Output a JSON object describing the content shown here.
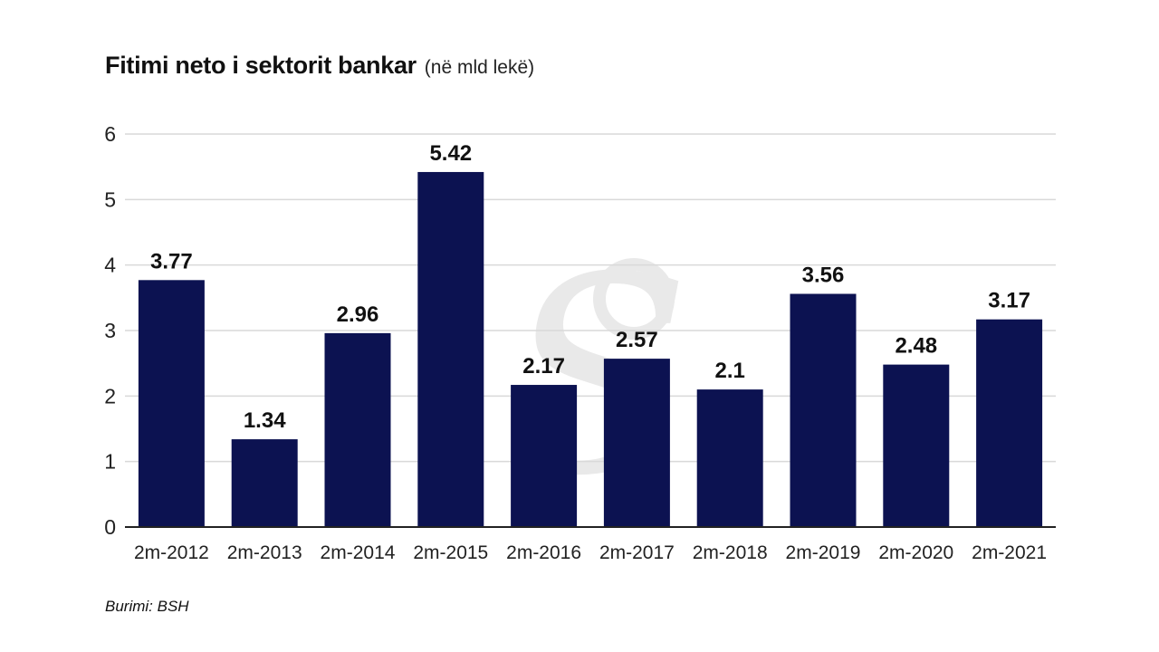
{
  "title": "Fitimi neto i sektorit bankar",
  "subtitle": "(në mld lekë)",
  "source": "Burimi: BSH",
  "colors": {
    "bar": "#0c1251",
    "grid": "#d9d9d9",
    "axis": "#222222",
    "watermark": "#e9e9e9"
  },
  "watermark_icon": "newspaper-logo-watermark",
  "chart_data": {
    "type": "bar",
    "title": "Fitimi neto i sektorit bankar",
    "subtitle": "(në mld lekë)",
    "xlabel": "",
    "ylabel": "",
    "categories": [
      "2m-2012",
      "2m-2013",
      "2m-2014",
      "2m-2015",
      "2m-2016",
      "2m-2017",
      "2m-2018",
      "2m-2019",
      "2m-2020",
      "2m-2021"
    ],
    "values": [
      3.77,
      1.34,
      2.96,
      5.42,
      2.17,
      2.57,
      2.1,
      3.56,
      2.48,
      3.17
    ],
    "data_labels": [
      "3.77",
      "1.34",
      "2.96",
      "5.42",
      "2.17",
      "2.57",
      "2.1",
      "3.56",
      "2.48",
      "3.17"
    ],
    "yticks": [
      0,
      1,
      2,
      3,
      4,
      5,
      6
    ],
    "ylim": [
      0,
      6
    ],
    "grid": true,
    "legend": "none"
  }
}
